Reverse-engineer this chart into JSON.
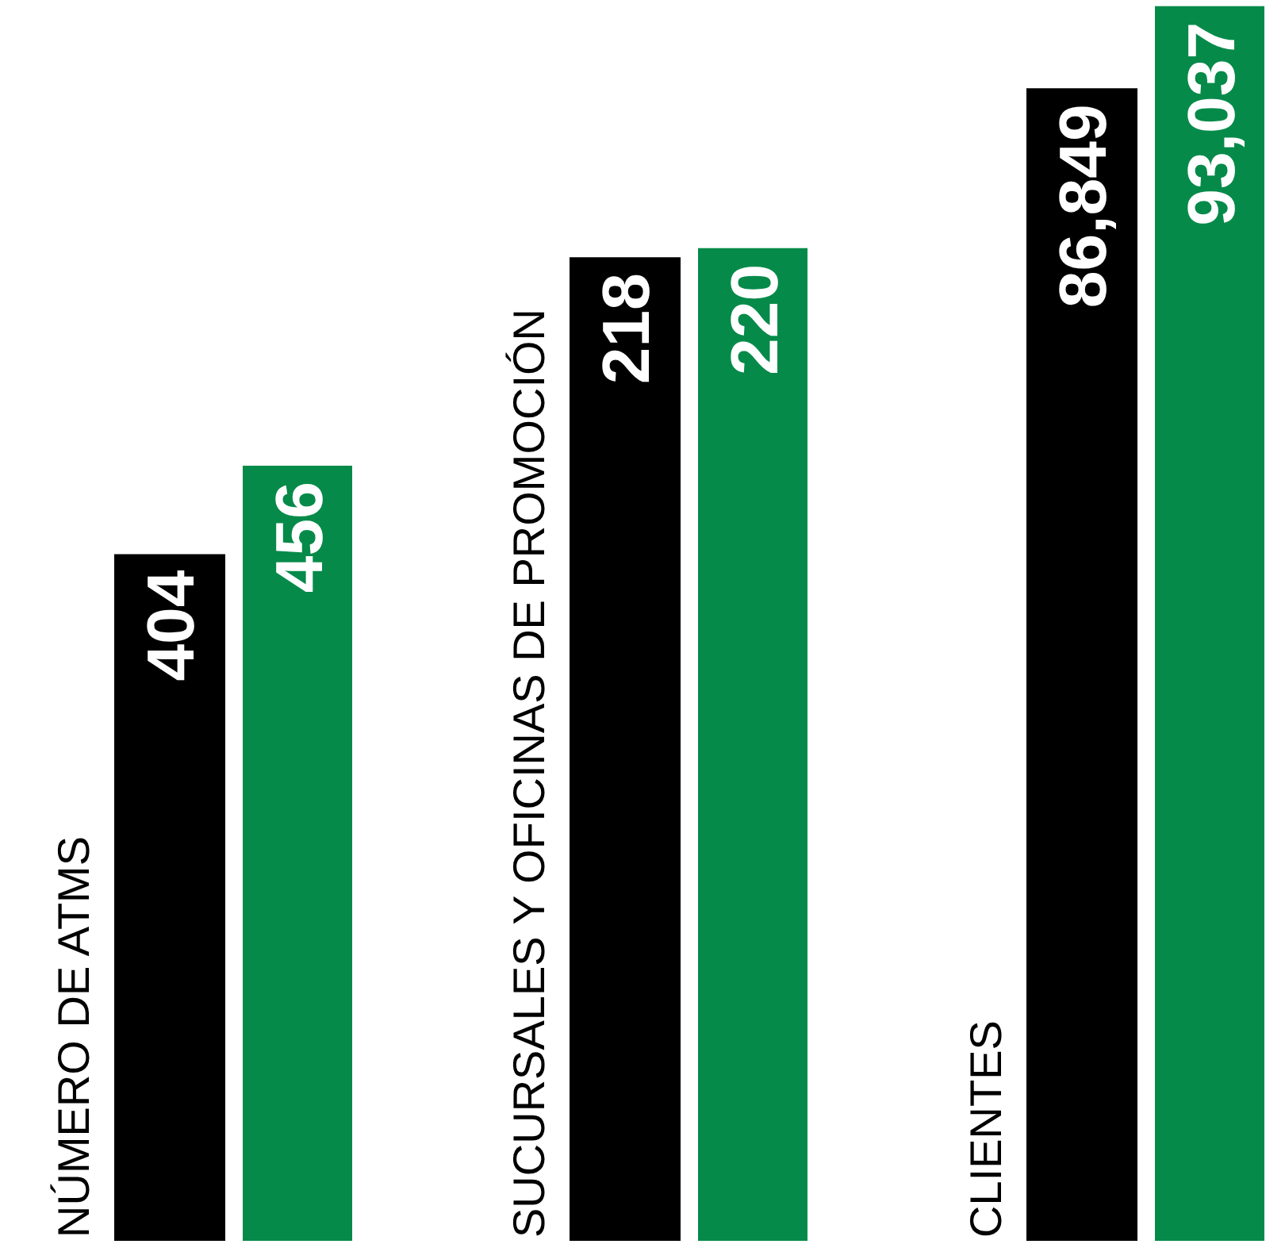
{
  "chart_data": [
    {
      "type": "bar",
      "ylabel": "NÚMERO DE ATMS",
      "categories": [
        null
      ],
      "series": [
        {
          "color": "#000000",
          "values": [
            404
          ]
        },
        {
          "color": "#068a4a",
          "values": [
            456
          ]
        }
      ],
      "ylim": [
        0,
        730
      ],
      "data_labels": true
    },
    {
      "type": "bar",
      "ylabel": "SUCURSALES Y OFICINAS DE PROMOCIÓN",
      "categories": [
        null
      ],
      "series": [
        {
          "color": "#000000",
          "values": [
            218
          ]
        },
        {
          "color": "#068a4a",
          "values": [
            220
          ]
        }
      ],
      "ylim": [
        0,
        275
      ],
      "data_labels": true
    },
    {
      "type": "bar",
      "ylabel": "CLIENTES",
      "categories": [
        null
      ],
      "series": [
        {
          "color": "#000000",
          "values": [
            86849
          ],
          "value_labels": [
            "86,849"
          ]
        },
        {
          "color": "#068a4a",
          "values": [
            93037
          ],
          "value_labels": [
            "93,037"
          ]
        }
      ],
      "ylim": [
        0,
        93500
      ]
    }
  ]
}
